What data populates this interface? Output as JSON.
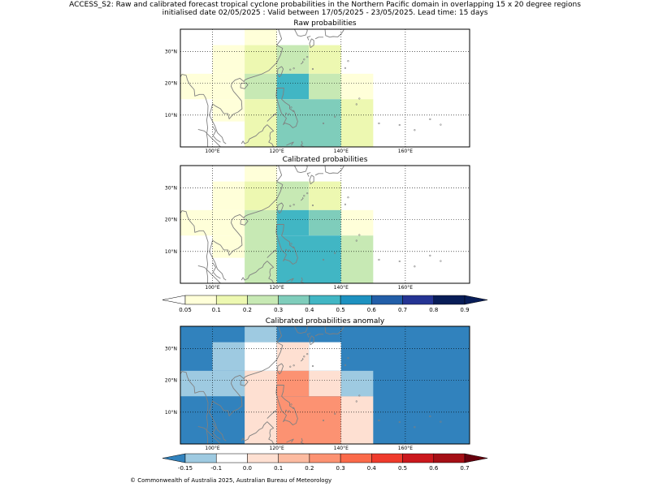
{
  "title_line1": "ACCESS_S2: Raw and calibrated forecast tropical cyclone probabilities in the Northern Pacific domain in overlapping 15 x 20 degree regions",
  "title_line2": "initialised date 02/05/2025 :  Valid between 17/05/2025 - 23/05/2025. Lead time: 15 days",
  "copyright": "© Commonwealth of Australia 2025, Australian Bureau of Meteorology",
  "map": {
    "lon_range": [
      90,
      180
    ],
    "lat_range": [
      0,
      37
    ],
    "lon_ticks": [
      100,
      120,
      140,
      160
    ],
    "lon_tick_labels": [
      "100°E",
      "120°E",
      "140°E",
      "160°E"
    ],
    "lat_ticks": [
      10,
      20,
      30
    ],
    "lat_tick_labels": [
      "10°N",
      "20°N",
      "30°N"
    ],
    "coastline_color": "#808080",
    "grid": "dotted"
  },
  "panels": [
    {
      "id": "raw",
      "title": "Raw probabilities",
      "background": "#ffffff",
      "cells": [
        {
          "lon": [
            110,
            120
          ],
          "lat": [
            32,
            37
          ],
          "color": "#ffffd9"
        },
        {
          "lon": [
            100,
            110
          ],
          "lat": [
            23,
            32
          ],
          "color": "#ffffd9"
        },
        {
          "lon": [
            110,
            120
          ],
          "lat": [
            23,
            32
          ],
          "color": "#edf8b1"
        },
        {
          "lon": [
            120,
            130
          ],
          "lat": [
            23,
            32
          ],
          "color": "#c7e9b4"
        },
        {
          "lon": [
            130,
            140
          ],
          "lat": [
            23,
            32
          ],
          "color": "#edf8b1"
        },
        {
          "lon": [
            90,
            100
          ],
          "lat": [
            15,
            23
          ],
          "color": "#ffffd9"
        },
        {
          "lon": [
            100,
            110
          ],
          "lat": [
            15,
            23
          ],
          "color": "#ffffd9"
        },
        {
          "lon": [
            110,
            120
          ],
          "lat": [
            15,
            23
          ],
          "color": "#c7e9b4"
        },
        {
          "lon": [
            120,
            130
          ],
          "lat": [
            15,
            23
          ],
          "color": "#41b6c4"
        },
        {
          "lon": [
            130,
            140
          ],
          "lat": [
            15,
            23
          ],
          "color": "#c7e9b4"
        },
        {
          "lon": [
            140,
            150
          ],
          "lat": [
            15,
            23
          ],
          "color": "#ffffd9"
        },
        {
          "lon": [
            100,
            110
          ],
          "lat": [
            8,
            15
          ],
          "color": "#ffffd9"
        },
        {
          "lon": [
            110,
            120
          ],
          "lat": [
            0,
            15
          ],
          "color": "#edf8b1"
        },
        {
          "lon": [
            120,
            140
          ],
          "lat": [
            0,
            15
          ],
          "color": "#7fcdbb"
        },
        {
          "lon": [
            140,
            150
          ],
          "lat": [
            0,
            15
          ],
          "color": "#edf8b1"
        }
      ]
    },
    {
      "id": "calibrated",
      "title": "Calibrated probabilities",
      "background": "#ffffff",
      "cells": [
        {
          "lon": [
            110,
            120
          ],
          "lat": [
            32,
            37
          ],
          "color": "#ffffd9"
        },
        {
          "lon": [
            100,
            110
          ],
          "lat": [
            23,
            32
          ],
          "color": "#ffffd9"
        },
        {
          "lon": [
            110,
            120
          ],
          "lat": [
            23,
            32
          ],
          "color": "#edf8b1"
        },
        {
          "lon": [
            120,
            130
          ],
          "lat": [
            23,
            32
          ],
          "color": "#c7e9b4"
        },
        {
          "lon": [
            130,
            140
          ],
          "lat": [
            23,
            32
          ],
          "color": "#edf8b1"
        },
        {
          "lon": [
            90,
            100
          ],
          "lat": [
            15,
            23
          ],
          "color": "#ffffd9"
        },
        {
          "lon": [
            100,
            110
          ],
          "lat": [
            15,
            23
          ],
          "color": "#ffffd9"
        },
        {
          "lon": [
            110,
            120
          ],
          "lat": [
            0,
            23
          ],
          "color": "#c7e9b4"
        },
        {
          "lon": [
            120,
            130
          ],
          "lat": [
            15,
            23
          ],
          "color": "#41b6c4"
        },
        {
          "lon": [
            130,
            140
          ],
          "lat": [
            15,
            23
          ],
          "color": "#7fcdbb"
        },
        {
          "lon": [
            140,
            150
          ],
          "lat": [
            15,
            23
          ],
          "color": "#ffffd9"
        },
        {
          "lon": [
            100,
            110
          ],
          "lat": [
            8,
            15
          ],
          "color": "#ffffd9"
        },
        {
          "lon": [
            120,
            140
          ],
          "lat": [
            0,
            15
          ],
          "color": "#41b6c4"
        },
        {
          "lon": [
            140,
            150
          ],
          "lat": [
            0,
            15
          ],
          "color": "#c7e9b4"
        }
      ]
    },
    {
      "id": "anomaly",
      "title": "Calibrated probabilities anomaly",
      "background": "#3182bd",
      "cells": [
        {
          "lon": [
            110,
            120
          ],
          "lat": [
            32,
            37
          ],
          "color": "#9ecae1"
        },
        {
          "lon": [
            100,
            110
          ],
          "lat": [
            23,
            32
          ],
          "color": "#9ecae1"
        },
        {
          "lon": [
            110,
            120
          ],
          "lat": [
            23,
            32
          ],
          "color": "#ffffff"
        },
        {
          "lon": [
            120,
            130
          ],
          "lat": [
            23,
            32
          ],
          "color": "#fee0d2"
        },
        {
          "lon": [
            130,
            140
          ],
          "lat": [
            23,
            32
          ],
          "color": "#ffffff"
        },
        {
          "lon": [
            90,
            100
          ],
          "lat": [
            15,
            23
          ],
          "color": "#9ecae1"
        },
        {
          "lon": [
            100,
            110
          ],
          "lat": [
            15,
            23
          ],
          "color": "#9ecae1"
        },
        {
          "lon": [
            110,
            120
          ],
          "lat": [
            0,
            23
          ],
          "color": "#fee0d2"
        },
        {
          "lon": [
            120,
            130
          ],
          "lat": [
            15,
            23
          ],
          "color": "#fc9272"
        },
        {
          "lon": [
            130,
            140
          ],
          "lat": [
            15,
            23
          ],
          "color": "#fee0d2"
        },
        {
          "lon": [
            140,
            150
          ],
          "lat": [
            15,
            23
          ],
          "color": "#9ecae1"
        },
        {
          "lon": [
            120,
            140
          ],
          "lat": [
            0,
            15
          ],
          "color": "#fc9272"
        },
        {
          "lon": [
            140,
            150
          ],
          "lat": [
            0,
            15
          ],
          "color": "#fee0d2"
        }
      ]
    }
  ],
  "colorbars": [
    {
      "id": "probability",
      "labels": [
        "0.05",
        "0.1",
        "0.2",
        "0.3",
        "0.4",
        "0.5",
        "0.6",
        "0.7",
        "0.8",
        "0.9"
      ],
      "under_color": "#ffffff",
      "over_color": "#081d58",
      "colors": [
        "#ffffd9",
        "#edf8b1",
        "#c7e9b4",
        "#7fcdbb",
        "#41b6c4",
        "#1d91c0",
        "#225ea8",
        "#253494",
        "#081d58"
      ]
    },
    {
      "id": "anomaly",
      "labels": [
        "-0.15",
        "-0.1",
        "0.0",
        "0.1",
        "0.2",
        "0.3",
        "0.4",
        "0.5",
        "0.6",
        "0.7"
      ],
      "under_color": "#3182bd",
      "over_color": "#67000d",
      "colors": [
        "#9ecae1",
        "#ffffff",
        "#fee0d2",
        "#fcbba1",
        "#fc9272",
        "#fb6a4a",
        "#ef3b2c",
        "#cb181d",
        "#a50f15"
      ]
    }
  ]
}
